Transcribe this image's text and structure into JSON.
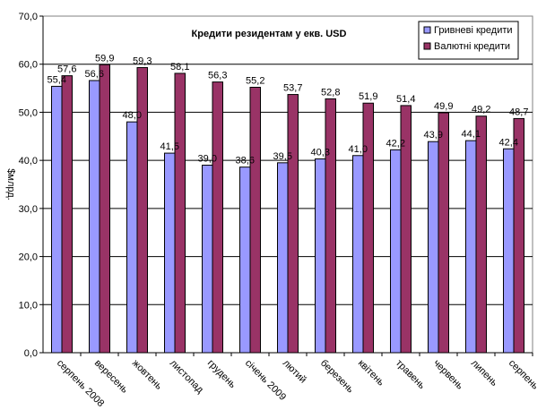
{
  "chart_data": {
    "type": "bar",
    "title": "Кредити резидентам у екв. USD",
    "ylabel": "$млрд.",
    "xlabel": "",
    "ylim": [
      0,
      70
    ],
    "ytick_step": 10,
    "ytick_labels": [
      "0,0",
      "10,0",
      "20,0",
      "30,0",
      "40,0",
      "50,0",
      "60,0",
      "70,0"
    ],
    "grid": true,
    "legend_position": "top-right",
    "categories": [
      "серпень 2008",
      "вересень",
      "жовтень",
      "листопад",
      "грудень",
      "січень 2009",
      "лютий",
      "березень",
      "квітень",
      "травень",
      "червень",
      "липень",
      "серпень"
    ],
    "series": [
      {
        "name": "Гривневі кредити",
        "color": "#9999ff",
        "values": [
          55.4,
          56.6,
          48.0,
          41.5,
          39.0,
          38.6,
          39.5,
          40.3,
          41.0,
          42.2,
          43.9,
          44.1,
          42.4
        ],
        "labels": [
          "55,4",
          "56,6",
          "48,0",
          "41,5",
          "39,0",
          "38,6",
          "39,5",
          "40,3",
          "41,0",
          "42,2",
          "43,9",
          "44,1",
          "42,4"
        ]
      },
      {
        "name": "Валютні кредити",
        "color": "#993366",
        "values": [
          57.6,
          59.9,
          59.3,
          58.1,
          56.3,
          55.2,
          53.7,
          52.8,
          51.9,
          51.4,
          49.9,
          49.2,
          48.7
        ],
        "labels": [
          "57,6",
          "59,9",
          "59,3",
          "58,1",
          "56,3",
          "55,2",
          "53,7",
          "52,8",
          "51,9",
          "51,4",
          "49,9",
          "49,2",
          "48,7"
        ]
      }
    ]
  }
}
